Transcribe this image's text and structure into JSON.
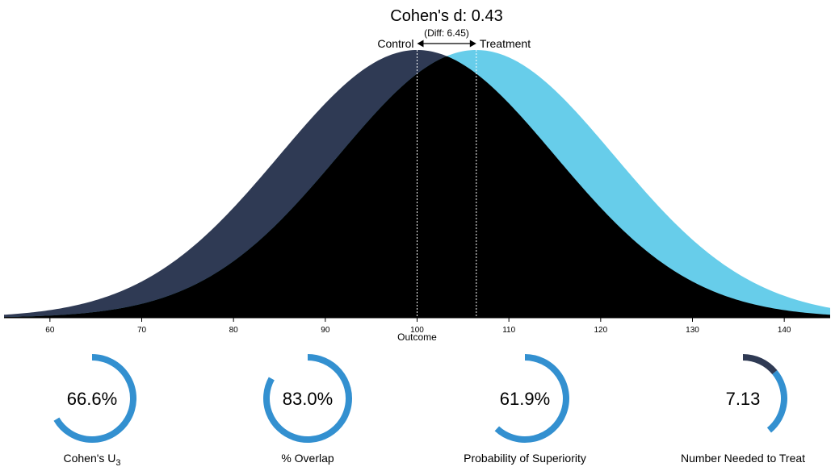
{
  "chart_data": {
    "type": "area",
    "title": "Cohen's d: 0.43",
    "subtitle": "(Diff: 6.45)",
    "xlabel": "Outcome",
    "xlim": [
      55,
      145
    ],
    "xticks": [
      "60",
      "70",
      "80",
      "90",
      "100",
      "110",
      "120",
      "130",
      "140"
    ],
    "series": [
      {
        "name": "Control",
        "mean": 100,
        "sd": 15,
        "color": "#2F3A54"
      },
      {
        "name": "Treatment",
        "mean": 106.45,
        "sd": 15,
        "color": "#67CDEA"
      }
    ],
    "overlap_color": "#000000",
    "mean_diff": 6.45,
    "cohens_d": 0.43
  },
  "gauges": [
    {
      "value_text": "66.6%",
      "fraction": 0.666,
      "label": "Cohen's U",
      "label_sub": "3",
      "arc_color": "#3390D0"
    },
    {
      "value_text": "83.0%",
      "fraction": 0.83,
      "label": "% Overlap",
      "label_sub": "",
      "arc_color": "#3390D0"
    },
    {
      "value_text": "61.9%",
      "fraction": 0.619,
      "label": "Probability of Superiority",
      "label_sub": "",
      "arc_color": "#3390D0"
    },
    {
      "value_text": "7.13",
      "fraction": 0.1403,
      "label": "Number Needed to Treat",
      "label_sub": "",
      "arc_color": "#3390D0",
      "arc_color_alt": "#2F3A54"
    }
  ]
}
